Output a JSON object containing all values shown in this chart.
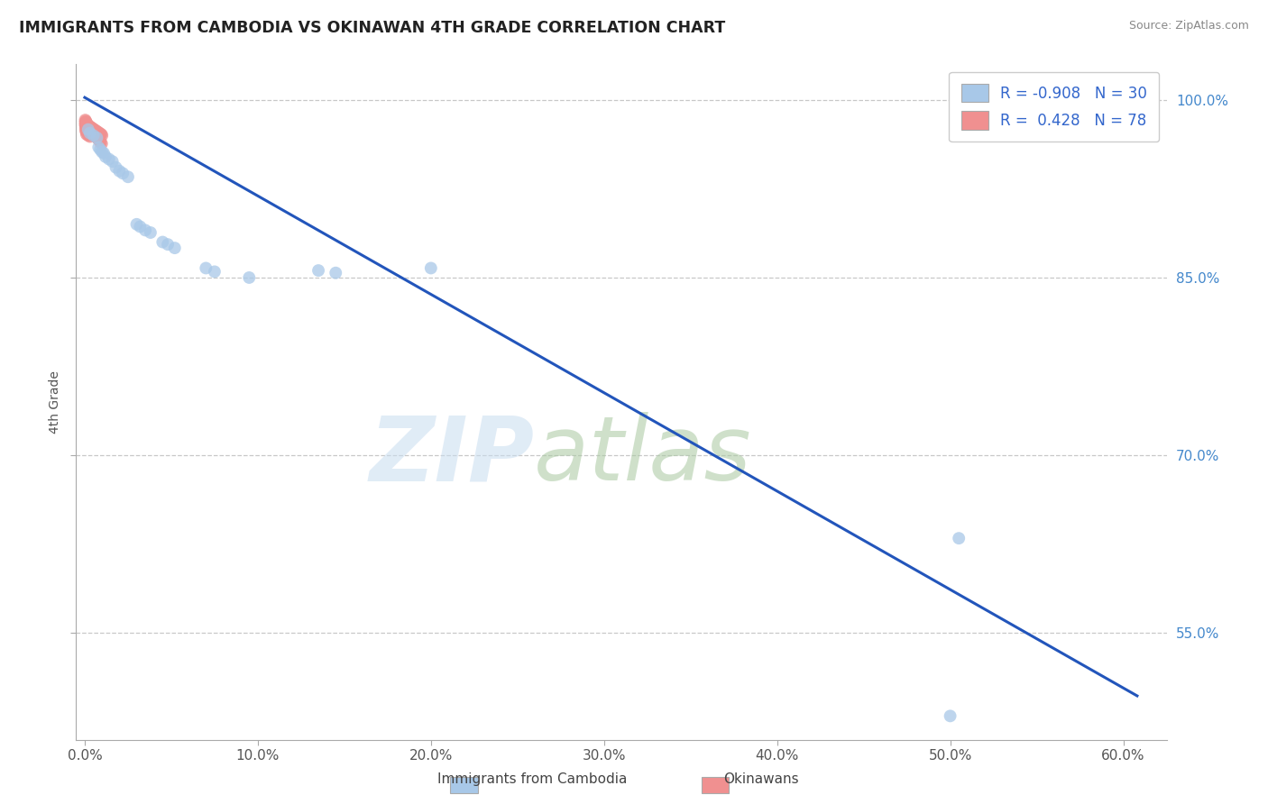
{
  "title": "IMMIGRANTS FROM CAMBODIA VS OKINAWAN 4TH GRADE CORRELATION CHART",
  "source": "Source: ZipAtlas.com",
  "ylabel": "4th Grade",
  "legend_label_blue": "Immigrants from Cambodia",
  "legend_label_pink": "Okinawans",
  "r_blue": -0.908,
  "n_blue": 30,
  "r_pink": 0.428,
  "n_pink": 78,
  "watermark_zip": "ZIP",
  "watermark_atlas": "atlas",
  "blue_scatter_x": [
    0.002,
    0.003,
    0.005,
    0.007,
    0.008,
    0.009,
    0.01,
    0.011,
    0.012,
    0.014,
    0.016,
    0.018,
    0.02,
    0.022,
    0.025,
    0.03,
    0.032,
    0.035,
    0.038,
    0.045,
    0.048,
    0.052,
    0.07,
    0.075,
    0.095,
    0.135,
    0.145,
    0.2,
    0.505,
    0.5
  ],
  "blue_scatter_y": [
    0.975,
    0.972,
    0.97,
    0.968,
    0.96,
    0.958,
    0.956,
    0.955,
    0.952,
    0.95,
    0.948,
    0.943,
    0.94,
    0.938,
    0.935,
    0.895,
    0.893,
    0.89,
    0.888,
    0.88,
    0.878,
    0.875,
    0.858,
    0.855,
    0.85,
    0.856,
    0.854,
    0.858,
    0.63,
    0.48
  ],
  "pink_scatter_x": [
    0.001,
    0.001,
    0.001,
    0.001,
    0.001,
    0.002,
    0.002,
    0.002,
    0.002,
    0.002,
    0.003,
    0.003,
    0.003,
    0.003,
    0.003,
    0.004,
    0.004,
    0.004,
    0.004,
    0.005,
    0.005,
    0.005,
    0.006,
    0.006,
    0.007,
    0.007,
    0.008,
    0.008,
    0.009,
    0.01,
    0.0005,
    0.0005,
    0.0005,
    0.0005,
    0.0015,
    0.0015,
    0.0015,
    0.0025,
    0.0025,
    0.0035,
    0.0035,
    0.0045,
    0.0045,
    0.0055,
    0.0065,
    0.0075,
    0.0085,
    0.0095,
    0.0008,
    0.0008,
    0.0008,
    0.0012,
    0.0012,
    0.0018,
    0.0018,
    0.0022,
    0.0022,
    0.0028,
    0.0032,
    0.0038,
    0.0042,
    0.0048,
    0.0052,
    0.0058,
    0.0062,
    0.0068,
    0.0072,
    0.0078,
    0.0082,
    0.0088,
    0.0092,
    0.0098,
    0.0003,
    0.0003,
    0.0003,
    0.0006,
    0.0006,
    0.0009
  ],
  "pink_scatter_y": [
    0.979,
    0.977,
    0.975,
    0.973,
    0.971,
    0.978,
    0.976,
    0.974,
    0.972,
    0.97,
    0.977,
    0.975,
    0.973,
    0.971,
    0.969,
    0.976,
    0.974,
    0.972,
    0.97,
    0.975,
    0.973,
    0.971,
    0.974,
    0.972,
    0.973,
    0.971,
    0.972,
    0.97,
    0.971,
    0.97,
    0.98,
    0.978,
    0.976,
    0.974,
    0.979,
    0.977,
    0.975,
    0.978,
    0.976,
    0.977,
    0.975,
    0.976,
    0.974,
    0.975,
    0.974,
    0.973,
    0.972,
    0.971,
    0.981,
    0.979,
    0.977,
    0.98,
    0.978,
    0.979,
    0.977,
    0.978,
    0.976,
    0.977,
    0.976,
    0.975,
    0.974,
    0.973,
    0.972,
    0.971,
    0.97,
    0.969,
    0.968,
    0.967,
    0.966,
    0.965,
    0.964,
    0.963,
    0.983,
    0.981,
    0.979,
    0.982,
    0.98,
    0.981
  ],
  "trendline_x": [
    0.0,
    0.608
  ],
  "trendline_y": [
    1.002,
    0.497
  ],
  "xlim": [
    -0.005,
    0.625
  ],
  "ylim": [
    0.46,
    1.03
  ],
  "xticks": [
    0.0,
    0.1,
    0.2,
    0.3,
    0.4,
    0.5,
    0.6
  ],
  "xtick_labels": [
    "0.0%",
    "10.0%",
    "20.0%",
    "30.0%",
    "40.0%",
    "50.0%",
    "60.0%"
  ],
  "yticks": [
    0.55,
    0.7,
    0.85,
    1.0
  ],
  "ytick_labels": [
    "55.0%",
    "70.0%",
    "85.0%",
    "100.0%"
  ],
  "grid_color": "#c8c8c8",
  "blue_dot_color": "#a8c8e8",
  "pink_dot_color": "#f09090",
  "line_color": "#2255bb",
  "dot_size": 100,
  "dot_alpha": 0.75,
  "background_color": "#ffffff"
}
